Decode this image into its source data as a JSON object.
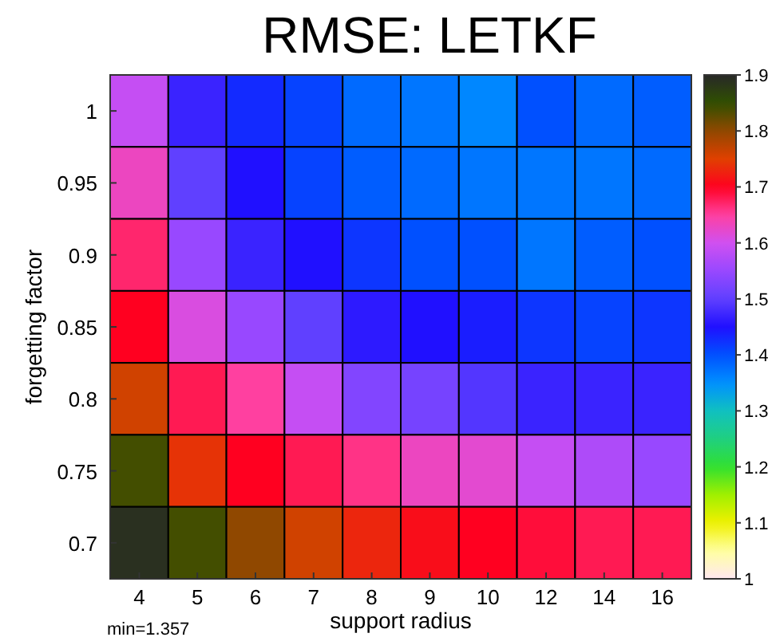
{
  "chart_data": {
    "type": "heatmap",
    "title": "RMSE: LETKF",
    "xlabel": "support radius",
    "ylabel": "forgetting factor",
    "categories": [
      "4",
      "5",
      "6",
      "7",
      "8",
      "9",
      "10",
      "12",
      "14",
      "16"
    ],
    "y_categories": [
      "1",
      "0.95",
      "0.9",
      "0.85",
      "0.8",
      "0.75",
      "0.7"
    ],
    "cells": [
      [
        1.59,
        1.47,
        1.43,
        1.41,
        1.38,
        1.37,
        1.357,
        1.4,
        1.38,
        1.39
      ],
      [
        1.63,
        1.5,
        1.45,
        1.41,
        1.39,
        1.38,
        1.37,
        1.37,
        1.37,
        1.38
      ],
      [
        1.67,
        1.55,
        1.47,
        1.45,
        1.42,
        1.4,
        1.4,
        1.37,
        1.39,
        1.4
      ],
      [
        1.7,
        1.61,
        1.55,
        1.5,
        1.46,
        1.45,
        1.44,
        1.42,
        1.41,
        1.42
      ],
      [
        1.76,
        1.68,
        1.65,
        1.59,
        1.53,
        1.52,
        1.49,
        1.47,
        1.47,
        1.47
      ],
      [
        1.84,
        1.74,
        1.7,
        1.68,
        1.66,
        1.63,
        1.62,
        1.59,
        1.57,
        1.55
      ],
      [
        1.89,
        1.84,
        1.8,
        1.76,
        1.73,
        1.71,
        1.7,
        1.69,
        1.68,
        1.68
      ]
    ],
    "clim": [
      1,
      1.9
    ],
    "cticks": [
      1,
      1.1,
      1.2,
      1.3,
      1.4,
      1.5,
      1.6,
      1.7,
      1.8,
      1.9
    ],
    "annotations": [
      "min=1.357"
    ]
  }
}
